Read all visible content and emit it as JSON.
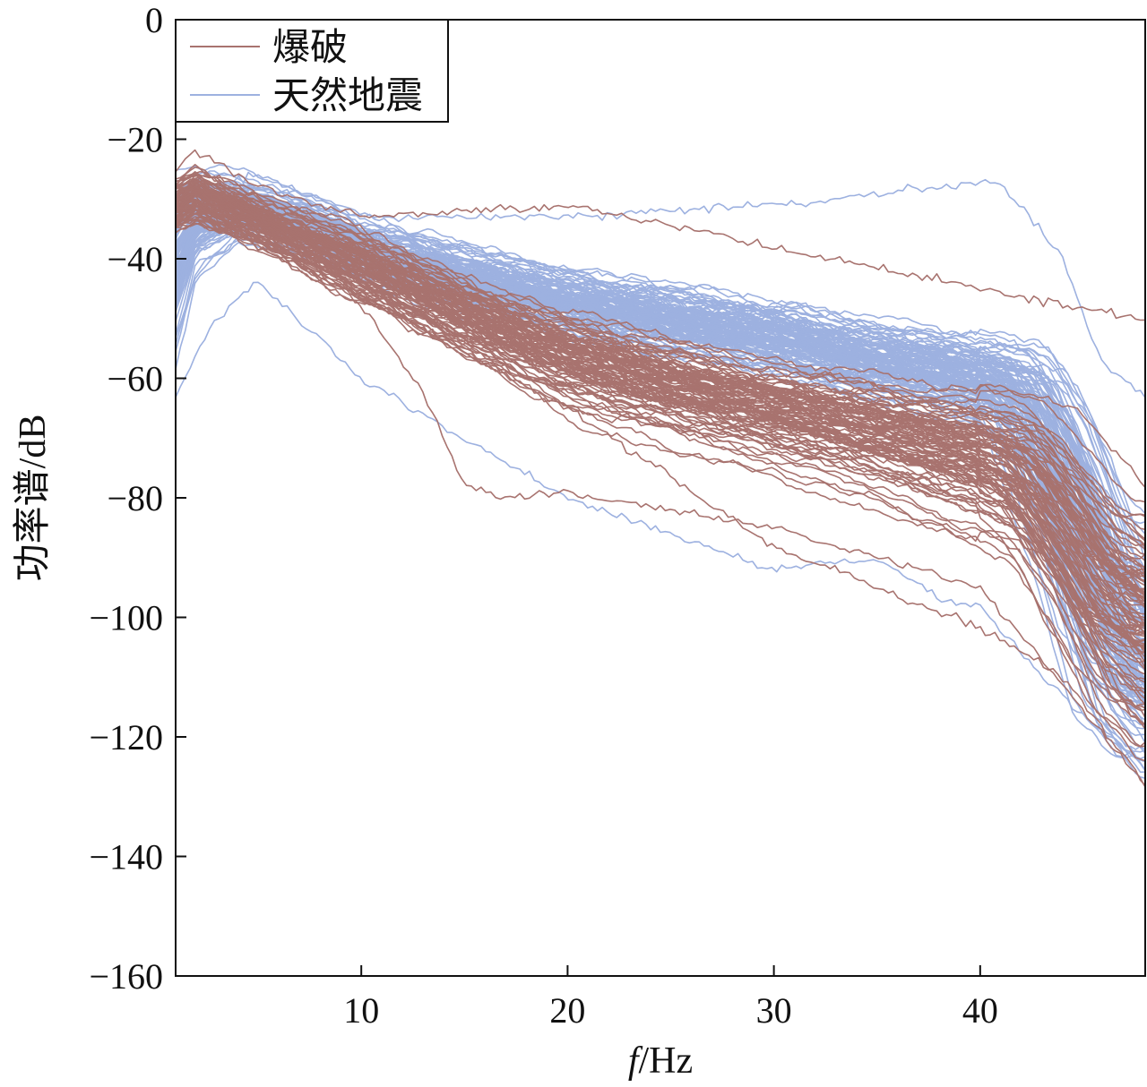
{
  "chart_data": {
    "type": "line",
    "xlabel_italic": "f",
    "xlabel_unit": "/Hz",
    "ylabel": "功率谱/dB",
    "xlim": [
      1,
      48
    ],
    "ylim": [
      -160,
      0
    ],
    "xticks": [
      10,
      20,
      30,
      40
    ],
    "yticks": [
      0,
      -20,
      -40,
      -60,
      -80,
      -100,
      -120,
      -140,
      -160
    ],
    "grid": false,
    "legend_position": "top-left",
    "series": [
      {
        "name": "爆破",
        "color": "#a8736f",
        "count": 100,
        "envelope": {
          "x": [
            1,
            2,
            4,
            6,
            8,
            10,
            15,
            20,
            25,
            30,
            35,
            40,
            42,
            44,
            46,
            48
          ],
          "median": [
            -31,
            -29,
            -32,
            -35,
            -38,
            -41,
            -49,
            -56,
            -61,
            -65,
            -69,
            -73,
            -76,
            -85,
            -96,
            -101
          ],
          "spread": [
            4,
            4,
            4,
            4,
            5,
            6,
            7,
            8,
            8,
            8,
            8,
            9,
            9,
            10,
            12,
            13
          ]
        },
        "highlight": [
          {
            "x": [
              1,
              2,
              5,
              10,
              20,
              30,
              40,
              48
            ],
            "y": [
              -25,
              -22,
              -28,
              -33,
              -31,
              -38,
              -45,
              -50
            ]
          },
          {
            "x": [
              1,
              2,
              5,
              10,
              13,
              15,
              17,
              20,
              30,
              40,
              48
            ],
            "y": [
              -32,
              -30,
              -38,
              -48,
              -62,
              -78,
              -80,
              -79,
              -85,
              -95,
              -128
            ]
          },
          {
            "x": [
              1,
              2,
              5,
              10,
              20,
              30,
              40,
              44,
              48
            ],
            "y": [
              -35,
              -32,
              -38,
              -46,
              -65,
              -88,
              -102,
              -110,
              -128
            ]
          }
        ]
      },
      {
        "name": "天然地震",
        "color": "#9db1e0",
        "count": 120,
        "envelope": {
          "x": [
            1,
            2,
            4,
            6,
            8,
            10,
            15,
            20,
            25,
            30,
            35,
            40,
            42,
            44,
            46,
            48
          ],
          "median": [
            -40,
            -33,
            -31,
            -33,
            -35,
            -38,
            -43,
            -47,
            -50,
            -53,
            -57,
            -60,
            -63,
            -78,
            -100,
            -108
          ],
          "spread": [
            10,
            6,
            4,
            4,
            4,
            4,
            5,
            5,
            5,
            5,
            5,
            5,
            6,
            10,
            12,
            12
          ]
        },
        "highlight": [
          {
            "x": [
              1,
              3,
              5,
              10,
              20,
              30,
              41,
              44,
              46,
              48
            ],
            "y": [
              -30,
              -28,
              -26,
              -33,
              -33,
              -31,
              -27,
              -40,
              -58,
              -63
            ]
          },
          {
            "x": [
              1,
              2,
              3,
              5,
              10,
              20,
              30,
              35,
              38,
              40,
              43,
              48
            ],
            "y": [
              -63,
              -56,
              -50,
              -44,
              -60,
              -80,
              -92,
              -90,
              -97,
              -98,
              -110,
              -125
            ]
          }
        ]
      }
    ]
  }
}
